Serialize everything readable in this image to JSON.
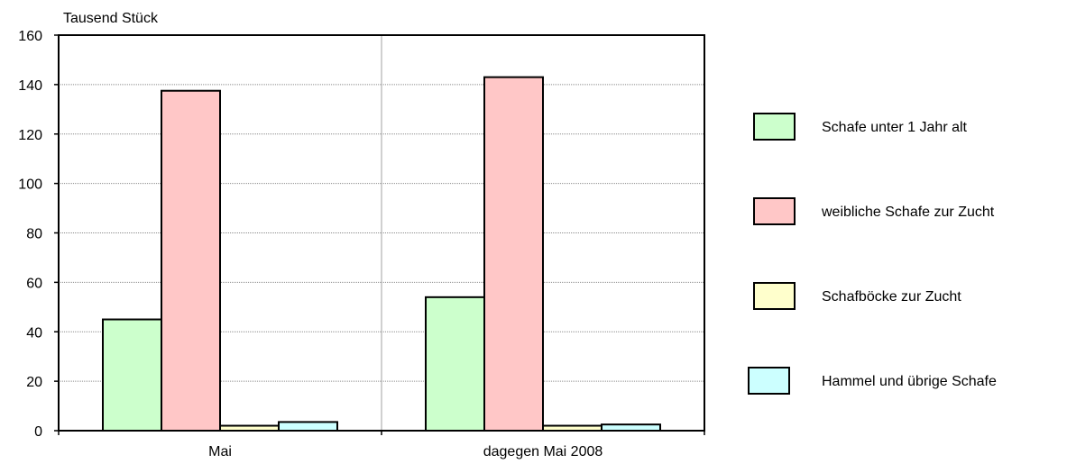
{
  "chart_data": {
    "type": "bar",
    "ylabel": "Tausend Stück",
    "categories": [
      "Mai",
      "dagegen Mai 2008"
    ],
    "ylim": [
      0,
      160
    ],
    "yticks": [
      0,
      20,
      40,
      60,
      80,
      100,
      120,
      140,
      160
    ],
    "grid": true,
    "legend_position": "right",
    "series": [
      {
        "name": "Schafe unter 1 Jahr alt",
        "color": "#ccffcc",
        "values": [
          45,
          54
        ]
      },
      {
        "name": "weibliche Schafe zur Zucht",
        "color": "#ffc7c7",
        "values": [
          137.5,
          143
        ]
      },
      {
        "name": "Schafböcke zur Zucht",
        "color": "#ffffcc",
        "values": [
          2,
          2
        ]
      },
      {
        "name": "Hammel und übrige Schafe",
        "color": "#ccffff",
        "values": [
          3.5,
          2.5
        ]
      }
    ]
  }
}
